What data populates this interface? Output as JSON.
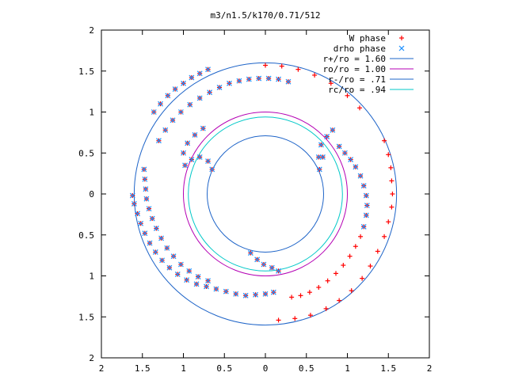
{
  "chart_data": {
    "type": "scatter",
    "title": "m3/n1.5/k170/0.71/512",
    "xlabel": "",
    "ylabel": "",
    "xlim": [
      -2,
      2
    ],
    "ylim": [
      -2,
      2
    ],
    "grid": false,
    "legend_position": "top-right",
    "x_ticks": [
      {
        "value": -2,
        "label": "2"
      },
      {
        "value": -1.5,
        "label": "1.5"
      },
      {
        "value": -1,
        "label": "1"
      },
      {
        "value": -0.5,
        "label": "0.5"
      },
      {
        "value": 0,
        "label": "0"
      },
      {
        "value": 0.5,
        "label": "0.5"
      },
      {
        "value": 1,
        "label": "1"
      },
      {
        "value": 1.5,
        "label": "1.5"
      },
      {
        "value": 2,
        "label": "2"
      }
    ],
    "y_ticks": [
      {
        "value": 2,
        "label": "2"
      },
      {
        "value": 1.5,
        "label": "1.5"
      },
      {
        "value": 1,
        "label": "1"
      },
      {
        "value": 0.5,
        "label": "0.5"
      },
      {
        "value": 0,
        "label": "0"
      },
      {
        "value": -0.5,
        "label": "0.5"
      },
      {
        "value": -1,
        "label": "1"
      },
      {
        "value": -1.5,
        "label": "1.5"
      },
      {
        "value": -2,
        "label": "2"
      }
    ],
    "series": [
      {
        "name": "W phase",
        "marker": "plus",
        "color": "#ff0000",
        "points": [
          [
            -1.62,
            -0.02
          ],
          [
            -1.6,
            -0.12
          ],
          [
            -1.56,
            -0.24
          ],
          [
            -1.52,
            -0.36
          ],
          [
            -1.47,
            -0.48
          ],
          [
            -1.41,
            -0.6
          ],
          [
            -1.34,
            -0.71
          ],
          [
            -1.26,
            -0.81
          ],
          [
            -1.17,
            -0.9
          ],
          [
            -1.07,
            -0.98
          ],
          [
            -0.96,
            -1.05
          ],
          [
            -0.84,
            -1.1
          ],
          [
            -0.72,
            -1.13
          ],
          [
            -0.6,
            -1.16
          ],
          [
            -0.48,
            -1.19
          ],
          [
            -0.36,
            -1.22
          ],
          [
            -0.24,
            -1.24
          ],
          [
            -0.12,
            -1.23
          ],
          [
            0.0,
            -1.22
          ],
          [
            0.1,
            -1.2
          ],
          [
            -1.48,
            0.3
          ],
          [
            -1.47,
            0.18
          ],
          [
            -1.46,
            0.06
          ],
          [
            -1.45,
            -0.06
          ],
          [
            -1.42,
            -0.18
          ],
          [
            -1.38,
            -0.3
          ],
          [
            -1.33,
            -0.42
          ],
          [
            -1.27,
            -0.54
          ],
          [
            -1.2,
            -0.66
          ],
          [
            -1.12,
            -0.76
          ],
          [
            -1.03,
            -0.86
          ],
          [
            -0.93,
            -0.94
          ],
          [
            -0.82,
            -1.01
          ],
          [
            -0.7,
            -1.06
          ],
          [
            -1.36,
            1.0
          ],
          [
            -1.28,
            1.1
          ],
          [
            -1.19,
            1.2
          ],
          [
            -1.1,
            1.28
          ],
          [
            -1.0,
            1.35
          ],
          [
            -0.9,
            1.42
          ],
          [
            -0.8,
            1.47
          ],
          [
            -0.7,
            1.52
          ],
          [
            -1.3,
            0.65
          ],
          [
            -1.22,
            0.78
          ],
          [
            -1.13,
            0.9
          ],
          [
            -1.03,
            1.0
          ],
          [
            -0.92,
            1.09
          ],
          [
            -0.8,
            1.17
          ],
          [
            -0.68,
            1.24
          ],
          [
            -0.56,
            1.3
          ],
          [
            -0.44,
            1.35
          ],
          [
            -0.32,
            1.38
          ],
          [
            -0.2,
            1.4
          ],
          [
            -0.08,
            1.41
          ],
          [
            0.04,
            1.41
          ],
          [
            0.16,
            1.4
          ],
          [
            0.28,
            1.37
          ],
          [
            0.0,
            1.57
          ],
          [
            0.2,
            1.56
          ],
          [
            0.4,
            1.52
          ],
          [
            0.6,
            1.45
          ],
          [
            0.8,
            1.35
          ],
          [
            1.0,
            1.2
          ],
          [
            1.15,
            1.05
          ],
          [
            0.9,
            0.58
          ],
          [
            0.97,
            0.5
          ],
          [
            1.04,
            0.42
          ],
          [
            1.1,
            0.33
          ],
          [
            1.16,
            0.22
          ],
          [
            1.2,
            0.1
          ],
          [
            1.23,
            -0.02
          ],
          [
            1.24,
            -0.14
          ],
          [
            1.23,
            -0.26
          ],
          [
            1.2,
            -0.4
          ],
          [
            1.16,
            -0.52
          ],
          [
            1.1,
            -0.64
          ],
          [
            1.03,
            -0.76
          ],
          [
            0.95,
            -0.87
          ],
          [
            0.86,
            -0.97
          ],
          [
            0.76,
            -1.06
          ],
          [
            0.65,
            -1.14
          ],
          [
            0.54,
            -1.2
          ],
          [
            0.43,
            -1.24
          ],
          [
            0.32,
            -1.26
          ],
          [
            1.45,
            0.65
          ],
          [
            1.5,
            0.48
          ],
          [
            1.53,
            0.32
          ],
          [
            1.54,
            0.16
          ],
          [
            1.55,
            0.0
          ],
          [
            1.54,
            -0.16
          ],
          [
            1.5,
            -0.34
          ],
          [
            1.45,
            -0.52
          ],
          [
            1.37,
            -0.7
          ],
          [
            1.28,
            -0.88
          ],
          [
            1.18,
            -1.03
          ],
          [
            1.05,
            -1.18
          ],
          [
            0.9,
            -1.3
          ],
          [
            0.74,
            -1.4
          ],
          [
            0.55,
            -1.48
          ],
          [
            0.36,
            -1.52
          ],
          [
            0.16,
            -1.54
          ],
          [
            -0.65,
            0.3
          ],
          [
            -0.7,
            0.4
          ],
          [
            -0.8,
            0.45
          ],
          [
            -0.9,
            0.42
          ],
          [
            -0.98,
            0.35
          ],
          [
            -1.0,
            0.5
          ],
          [
            -0.95,
            0.62
          ],
          [
            -0.86,
            0.72
          ],
          [
            -0.76,
            0.8
          ],
          [
            -0.18,
            -0.72
          ],
          [
            -0.1,
            -0.8
          ],
          [
            -0.02,
            -0.86
          ],
          [
            0.08,
            -0.9
          ],
          [
            0.16,
            -0.94
          ],
          [
            0.68,
            0.6
          ],
          [
            0.65,
            0.45
          ],
          [
            0.66,
            0.3
          ],
          [
            0.7,
            0.45
          ],
          [
            0.75,
            0.7
          ],
          [
            0.82,
            0.78
          ]
        ]
      },
      {
        "name": "drho phase",
        "marker": "cross",
        "color": "#1e90ff",
        "points": [
          [
            -1.62,
            -0.02
          ],
          [
            -1.6,
            -0.12
          ],
          [
            -1.56,
            -0.24
          ],
          [
            -1.52,
            -0.36
          ],
          [
            -1.47,
            -0.48
          ],
          [
            -1.41,
            -0.6
          ],
          [
            -1.34,
            -0.71
          ],
          [
            -1.26,
            -0.81
          ],
          [
            -1.17,
            -0.9
          ],
          [
            -1.07,
            -0.98
          ],
          [
            -0.96,
            -1.05
          ],
          [
            -0.84,
            -1.1
          ],
          [
            -0.72,
            -1.13
          ],
          [
            -0.6,
            -1.16
          ],
          [
            -0.48,
            -1.19
          ],
          [
            -0.36,
            -1.22
          ],
          [
            -0.24,
            -1.24
          ],
          [
            -0.12,
            -1.23
          ],
          [
            0.0,
            -1.22
          ],
          [
            0.1,
            -1.2
          ],
          [
            -1.48,
            0.3
          ],
          [
            -1.47,
            0.18
          ],
          [
            -1.46,
            0.06
          ],
          [
            -1.45,
            -0.06
          ],
          [
            -1.42,
            -0.18
          ],
          [
            -1.38,
            -0.3
          ],
          [
            -1.33,
            -0.42
          ],
          [
            -1.27,
            -0.54
          ],
          [
            -1.2,
            -0.66
          ],
          [
            -1.12,
            -0.76
          ],
          [
            -1.03,
            -0.86
          ],
          [
            -0.93,
            -0.94
          ],
          [
            -0.82,
            -1.01
          ],
          [
            -0.7,
            -1.06
          ],
          [
            -1.36,
            1.0
          ],
          [
            -1.28,
            1.1
          ],
          [
            -1.19,
            1.2
          ],
          [
            -1.1,
            1.28
          ],
          [
            -1.0,
            1.35
          ],
          [
            -0.9,
            1.42
          ],
          [
            -0.8,
            1.47
          ],
          [
            -0.7,
            1.52
          ],
          [
            -1.3,
            0.65
          ],
          [
            -1.22,
            0.78
          ],
          [
            -1.13,
            0.9
          ],
          [
            -1.03,
            1.0
          ],
          [
            -0.92,
            1.09
          ],
          [
            -0.8,
            1.17
          ],
          [
            -0.68,
            1.24
          ],
          [
            -0.56,
            1.3
          ],
          [
            -0.44,
            1.35
          ],
          [
            -0.32,
            1.38
          ],
          [
            -0.2,
            1.4
          ],
          [
            -0.08,
            1.41
          ],
          [
            0.04,
            1.41
          ],
          [
            0.16,
            1.4
          ],
          [
            0.28,
            1.37
          ],
          [
            0.9,
            0.58
          ],
          [
            0.97,
            0.5
          ],
          [
            1.04,
            0.42
          ],
          [
            1.1,
            0.33
          ],
          [
            1.16,
            0.22
          ],
          [
            1.2,
            0.1
          ],
          [
            1.23,
            -0.02
          ],
          [
            1.24,
            -0.14
          ],
          [
            1.23,
            -0.26
          ],
          [
            1.2,
            -0.4
          ],
          [
            -0.65,
            0.3
          ],
          [
            -0.7,
            0.4
          ],
          [
            -0.8,
            0.45
          ],
          [
            -0.9,
            0.42
          ],
          [
            -0.98,
            0.35
          ],
          [
            -1.0,
            0.5
          ],
          [
            -0.95,
            0.62
          ],
          [
            -0.86,
            0.72
          ],
          [
            -0.76,
            0.8
          ],
          [
            -0.18,
            -0.72
          ],
          [
            -0.1,
            -0.8
          ],
          [
            -0.02,
            -0.86
          ],
          [
            0.08,
            -0.9
          ],
          [
            0.16,
            -0.94
          ],
          [
            0.68,
            0.6
          ],
          [
            0.65,
            0.45
          ],
          [
            0.66,
            0.3
          ],
          [
            0.7,
            0.45
          ],
          [
            0.75,
            0.7
          ],
          [
            0.82,
            0.78
          ]
        ]
      },
      {
        "name": "r+/ro = 1.60",
        "type": "circle",
        "radius": 1.6,
        "color": "#1e64c8"
      },
      {
        "name": "ro/ro = 1.00",
        "type": "circle",
        "radius": 1.0,
        "color": "#b400b4"
      },
      {
        "name": "r-/ro = .71",
        "type": "circle",
        "radius": 0.71,
        "color": "#1e64c8"
      },
      {
        "name": "rc/ro = .94",
        "type": "circle",
        "radius": 0.94,
        "color": "#00c8c8"
      }
    ]
  }
}
